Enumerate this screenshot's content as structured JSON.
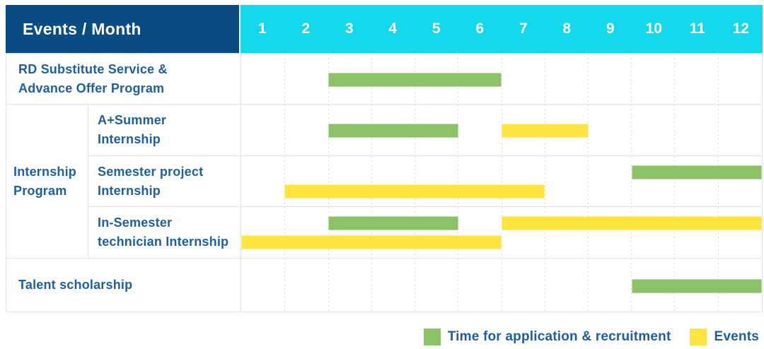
{
  "header": {
    "title": "Events / Month",
    "months": [
      "1",
      "2",
      "3",
      "4",
      "5",
      "6",
      "7",
      "8",
      "9",
      "10",
      "11",
      "12"
    ]
  },
  "group_label": "Internship\nProgram",
  "chart_data": {
    "type": "gantt",
    "unit": "month",
    "x_range": [
      1,
      12
    ],
    "x_ticks": [
      1,
      2,
      3,
      4,
      5,
      6,
      7,
      8,
      9,
      10,
      11,
      12
    ],
    "grid": "dashed-vertical-month-lines",
    "legend_position": "bottom-right",
    "series_names": {
      "recruitment": "Time for application & recruitment",
      "events": "Events"
    },
    "rows": [
      {
        "group": "",
        "label": "RD Substitute Service &\nAdvance Offer Program",
        "bars": [
          {
            "series": "recruitment",
            "start_month": 3,
            "end_month": 6,
            "line": 1
          }
        ]
      },
      {
        "group": "Internship Program",
        "label": "A+Summer\nInternship",
        "bars": [
          {
            "series": "recruitment",
            "start_month": 3,
            "end_month": 5,
            "line": 1
          },
          {
            "series": "events",
            "start_month": 7,
            "end_month": 8,
            "line": 1
          }
        ]
      },
      {
        "group": "Internship Program",
        "label": "Semester project\nInternship",
        "bars": [
          {
            "series": "recruitment",
            "start_month": 10,
            "end_month": 12,
            "line": 1
          },
          {
            "series": "events",
            "start_month": 2,
            "end_month": 7,
            "line": 2
          }
        ]
      },
      {
        "group": "Internship Program",
        "label": "In-Semester\ntechnician Internship",
        "bars": [
          {
            "series": "recruitment",
            "start_month": 3,
            "end_month": 5,
            "line": 1
          },
          {
            "series": "events",
            "start_month": 7,
            "end_month": 12,
            "line": 1
          },
          {
            "series": "events",
            "start_month": 1,
            "end_month": 6,
            "line": 2
          }
        ]
      },
      {
        "group": "",
        "label": "Talent scholarship",
        "bars": [
          {
            "series": "recruitment",
            "start_month": 10,
            "end_month": 12,
            "line": 1
          }
        ]
      }
    ]
  },
  "legend": {
    "items": [
      {
        "series": "recruitment",
        "label": "Time for application & recruitment"
      },
      {
        "series": "events",
        "label": "Events"
      }
    ]
  },
  "colors": {
    "recruitment": "#8ac265",
    "events": "#ffe43d",
    "header_bg": "#0b4c85",
    "months_bg": "#13d8ec",
    "header_text": "#ffffff",
    "label_text": "#1d5fa3",
    "grid_line": "#e3e3e3"
  }
}
